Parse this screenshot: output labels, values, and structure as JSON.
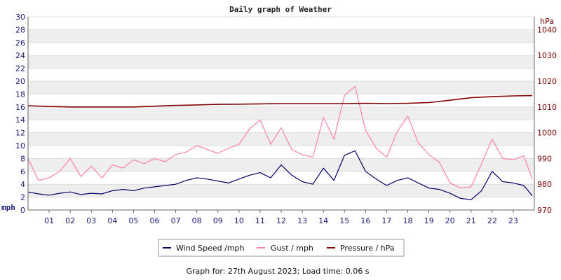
{
  "chart_data": {
    "type": "line",
    "title": "Daily graph of Weather",
    "left_unit": "mph",
    "right_unit": "hPa",
    "y_left": {
      "min": 0,
      "max": 30,
      "step": 2,
      "ticks": [
        "0",
        "2",
        "4",
        "6",
        "8",
        "10",
        "12",
        "14",
        "16",
        "18",
        "20",
        "22",
        "24",
        "26",
        "28",
        "30"
      ]
    },
    "y_right": {
      "min": 970,
      "max": 1045,
      "ticks": [
        "970",
        "980",
        "990",
        "1000",
        "1010",
        "1020",
        "1030",
        "1040"
      ]
    },
    "x": {
      "min": 0,
      "max": 24,
      "ticks": [
        "01",
        "02",
        "03",
        "04",
        "05",
        "06",
        "07",
        "08",
        "09",
        "10",
        "11",
        "12",
        "13",
        "14",
        "15",
        "16",
        "17",
        "18",
        "19",
        "20",
        "21",
        "22",
        "23"
      ]
    },
    "grid": true,
    "legend_position": "bottom",
    "colors": {
      "wind": "#000066",
      "gust": "#ff80a8",
      "pressure": "#800000",
      "band": "#eeeeee"
    },
    "series": [
      {
        "name": "Wind Speed /mph",
        "axis": "left",
        "x": [
          0,
          0.5,
          1,
          1.5,
          2,
          2.5,
          3,
          3.5,
          4,
          4.5,
          5,
          5.5,
          6,
          6.5,
          7,
          7.5,
          8,
          8.5,
          9,
          9.5,
          10,
          10.5,
          11,
          11.5,
          12,
          12.5,
          13,
          13.5,
          14,
          14.5,
          15,
          15.5,
          16,
          16.5,
          17,
          17.5,
          18,
          18.5,
          19,
          19.5,
          20,
          20.5,
          21,
          21.5,
          22,
          22.5,
          23,
          23.5,
          23.9
        ],
        "values": [
          2.8,
          2.5,
          2.3,
          2.6,
          2.8,
          2.4,
          2.6,
          2.5,
          3.0,
          3.2,
          3.0,
          3.4,
          3.6,
          3.8,
          4.0,
          4.6,
          5.0,
          4.8,
          4.5,
          4.2,
          4.8,
          5.4,
          5.8,
          5.0,
          7.0,
          5.4,
          4.4,
          4.0,
          6.5,
          4.6,
          8.5,
          9.2,
          6.0,
          4.8,
          3.8,
          4.6,
          5.0,
          4.2,
          3.4,
          3.2,
          2.6,
          1.8,
          1.6,
          3.0,
          6.0,
          4.4,
          4.2,
          3.8,
          2.2
        ]
      },
      {
        "name": "Gust / mph",
        "axis": "left",
        "x": [
          0,
          0.5,
          1,
          1.5,
          2,
          2.5,
          3,
          3.5,
          4,
          4.5,
          5,
          5.5,
          6,
          6.5,
          7,
          7.5,
          8,
          8.5,
          9,
          9.5,
          10,
          10.5,
          11,
          11.5,
          12,
          12.5,
          13,
          13.5,
          14,
          14.5,
          15,
          15.5,
          16,
          16.5,
          17,
          17.5,
          18,
          18.5,
          19,
          19.5,
          20,
          20.5,
          21,
          21.5,
          22,
          22.5,
          23,
          23.5,
          23.9
        ],
        "values": [
          8.0,
          4.6,
          5.0,
          6.0,
          8.0,
          5.2,
          6.8,
          5.0,
          7.0,
          6.5,
          7.8,
          7.2,
          8.0,
          7.5,
          8.6,
          9.0,
          10.0,
          9.4,
          8.8,
          9.6,
          10.2,
          12.6,
          14.0,
          10.2,
          12.8,
          9.4,
          8.6,
          8.2,
          14.4,
          11.0,
          17.8,
          19.2,
          12.4,
          9.6,
          8.2,
          12.2,
          14.6,
          10.4,
          8.6,
          7.4,
          4.2,
          3.4,
          3.6,
          7.2,
          11.0,
          8.0,
          7.8,
          8.4,
          4.8
        ]
      },
      {
        "name": "Pressure / hPa",
        "axis": "right",
        "x": [
          0,
          1,
          2,
          3,
          4,
          5,
          6,
          7,
          8,
          9,
          10,
          11,
          12,
          13,
          14,
          15,
          16,
          17,
          18,
          19,
          20,
          21,
          22,
          23,
          23.9
        ],
        "values": [
          1010.5,
          1010.2,
          1010.0,
          1010.0,
          1010.0,
          1010.0,
          1010.3,
          1010.6,
          1010.8,
          1011.0,
          1011.1,
          1011.2,
          1011.3,
          1011.3,
          1011.3,
          1011.3,
          1011.4,
          1011.3,
          1011.4,
          1011.7,
          1012.6,
          1013.6,
          1014.0,
          1014.3,
          1014.4
        ]
      }
    ]
  },
  "footer": "Graph for: 27th August 2023; Load time: 0.06 s"
}
